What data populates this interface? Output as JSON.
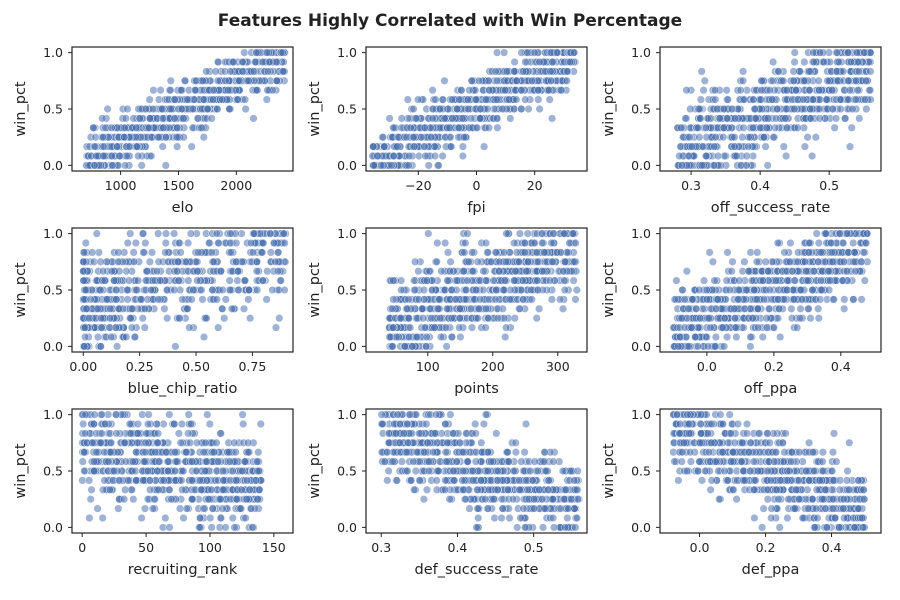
{
  "figure": {
    "title": "Features Highly Correlated with Win Percentage"
  },
  "style": {
    "point_color": "#4c72b0",
    "point_alpha": 0.55,
    "edge_color": "#ffffff"
  },
  "chart_data": [
    {
      "type": "scatter",
      "xlabel": "elo",
      "ylabel": "win_pct",
      "xlim": [
        580,
        2490
      ],
      "ylim": [
        -0.05,
        1.05
      ],
      "xticks": [
        1000,
        1500,
        2000
      ],
      "xticklabels": [
        "1000",
        "1500",
        "2000"
      ],
      "yticks": [
        0.0,
        0.5,
        1.0
      ],
      "yticklabels": [
        "0.0",
        "0.5",
        "1.0"
      ],
      "trend": {
        "kind": "linear",
        "x_range": [
          700,
          2420
        ],
        "y_at_min": 0.03,
        "y_at_max": 0.97,
        "spread": 0.12,
        "n": 700
      }
    },
    {
      "type": "scatter",
      "xlabel": "fpi",
      "ylabel": "win_pct",
      "xlim": [
        -38,
        38
      ],
      "ylim": [
        -0.05,
        1.05
      ],
      "xticks": [
        -20,
        0,
        20
      ],
      "xticklabels": [
        "−20",
        "0",
        "20"
      ],
      "yticks": [
        0.0,
        0.5,
        1.0
      ],
      "yticklabels": [
        "0.0",
        "0.5",
        "1.0"
      ],
      "trend": {
        "kind": "linear",
        "x_range": [
          -36,
          34
        ],
        "y_at_min": 0.04,
        "y_at_max": 0.96,
        "spread": 0.14,
        "n": 700
      }
    },
    {
      "type": "scatter",
      "xlabel": "off_success_rate",
      "ylabel": "win_pct",
      "xlim": [
        0.255,
        0.575
      ],
      "ylim": [
        -0.05,
        1.05
      ],
      "xticks": [
        0.3,
        0.4,
        0.5
      ],
      "xticklabels": [
        "0.3",
        "0.4",
        "0.5"
      ],
      "yticks": [
        0.0,
        0.5,
        1.0
      ],
      "yticklabels": [
        "0.0",
        "0.5",
        "1.0"
      ],
      "trend": {
        "kind": "linear",
        "x_range": [
          0.28,
          0.56
        ],
        "y_at_min": 0.15,
        "y_at_max": 0.85,
        "spread": 0.2,
        "n": 700
      }
    },
    {
      "type": "scatter",
      "xlabel": "blue_chip_ratio",
      "ylabel": "win_pct",
      "xlim": [
        -0.05,
        0.93
      ],
      "ylim": [
        -0.05,
        1.05
      ],
      "xticks": [
        0.0,
        0.25,
        0.5,
        0.75
      ],
      "xticklabels": [
        "0.00",
        "0.25",
        "0.50",
        "0.75"
      ],
      "yticks": [
        0.0,
        0.5,
        1.0
      ],
      "yticklabels": [
        "0.0",
        "0.5",
        "1.0"
      ],
      "trend": {
        "kind": "skew",
        "x_range": [
          0.0,
          0.9
        ],
        "y_at_min": 0.38,
        "y_at_max": 0.82,
        "spread": 0.22,
        "n": 600
      }
    },
    {
      "type": "scatter",
      "xlabel": "points",
      "ylabel": "win_pct",
      "xlim": [
        5,
        345
      ],
      "ylim": [
        -0.05,
        1.05
      ],
      "xticks": [
        100,
        200,
        300
      ],
      "xticklabels": [
        "100",
        "200",
        "300"
      ],
      "yticks": [
        0.0,
        0.5,
        1.0
      ],
      "yticklabels": [
        "0.0",
        "0.5",
        "1.0"
      ],
      "trend": {
        "kind": "linear",
        "x_range": [
          40,
          330
        ],
        "y_at_min": 0.2,
        "y_at_max": 0.85,
        "spread": 0.2,
        "n": 700
      }
    },
    {
      "type": "scatter",
      "xlabel": "off_ppa",
      "ylabel": "win_pct",
      "xlim": [
        -0.14,
        0.52
      ],
      "ylim": [
        -0.05,
        1.05
      ],
      "xticks": [
        0.0,
        0.2,
        0.4
      ],
      "xticklabels": [
        "0.0",
        "0.2",
        "0.4"
      ],
      "yticks": [
        0.0,
        0.5,
        1.0
      ],
      "yticklabels": [
        "0.0",
        "0.5",
        "1.0"
      ],
      "trend": {
        "kind": "linear",
        "x_range": [
          -0.1,
          0.48
        ],
        "y_at_min": 0.15,
        "y_at_max": 0.88,
        "spread": 0.18,
        "n": 700
      }
    },
    {
      "type": "scatter",
      "xlabel": "recruiting_rank",
      "ylabel": "win_pct",
      "xlim": [
        -8,
        165
      ],
      "ylim": [
        -0.05,
        1.05
      ],
      "xticks": [
        0,
        50,
        100,
        150
      ],
      "xticklabels": [
        "0",
        "50",
        "100",
        "150"
      ],
      "yticks": [
        0.0,
        0.5,
        1.0
      ],
      "yticklabels": [
        "0.0",
        "0.5",
        "1.0"
      ],
      "trend": {
        "kind": "linear",
        "x_range": [
          0,
          140
        ],
        "y_at_min": 0.68,
        "y_at_max": 0.38,
        "spread": 0.2,
        "n": 700
      }
    },
    {
      "type": "scatter",
      "xlabel": "def_success_rate",
      "ylabel": "win_pct",
      "xlim": [
        0.28,
        0.57
      ],
      "ylim": [
        -0.05,
        1.05
      ],
      "xticks": [
        0.3,
        0.4,
        0.5
      ],
      "xticklabels": [
        "0.3",
        "0.4",
        "0.5"
      ],
      "yticks": [
        0.0,
        0.5,
        1.0
      ],
      "yticklabels": [
        "0.0",
        "0.5",
        "1.0"
      ],
      "trend": {
        "kind": "linear",
        "x_range": [
          0.3,
          0.56
        ],
        "y_at_min": 0.82,
        "y_at_max": 0.2,
        "spread": 0.18,
        "n": 700
      }
    },
    {
      "type": "scatter",
      "xlabel": "def_ppa",
      "ylabel": "win_pct",
      "xlim": [
        -0.12,
        0.55
      ],
      "ylim": [
        -0.05,
        1.05
      ],
      "xticks": [
        0.0,
        0.2,
        0.4
      ],
      "xticklabels": [
        "0.0",
        "0.2",
        "0.4"
      ],
      "yticks": [
        0.0,
        0.5,
        1.0
      ],
      "yticklabels": [
        "0.0",
        "0.5",
        "1.0"
      ],
      "trend": {
        "kind": "linear",
        "x_range": [
          -0.08,
          0.5
        ],
        "y_at_min": 0.85,
        "y_at_max": 0.15,
        "spread": 0.18,
        "n": 700
      }
    }
  ]
}
